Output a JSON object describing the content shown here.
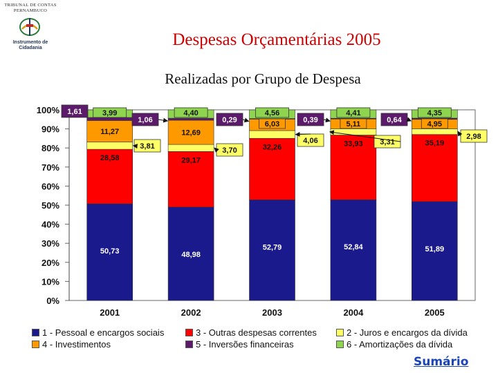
{
  "header": {
    "logo_top_text": "TRIBUNAL DE CONTAS PERNAMBUCO",
    "logo_sub_text": "Instrumento de Cidadania"
  },
  "title": "Despesas Orçamentárias 2005",
  "subtitle": "Realizadas por Grupo de Despesa",
  "chart_data": {
    "type": "bar",
    "stacked": true,
    "percent_stacked": true,
    "categories": [
      "2001",
      "2002",
      "2003",
      "2004",
      "2005"
    ],
    "ylim": [
      0,
      100
    ],
    "yticks": [
      "0%",
      "10%",
      "20%",
      "30%",
      "40%",
      "50%",
      "60%",
      "70%",
      "80%",
      "90%",
      "100%"
    ],
    "grid": false,
    "legend_position": "bottom",
    "series": [
      {
        "name": "1 - Pessoal e encargos sociais",
        "color": "#1a1a8c",
        "values": [
          50.73,
          48.98,
          52.79,
          52.84,
          51.89
        ],
        "labels": [
          "50,73",
          "48,98",
          "52,79",
          "52,84",
          "51,89"
        ]
      },
      {
        "name": "3 - Outras despesas correntes",
        "color": "#ff0000",
        "values": [
          28.58,
          29.17,
          32.26,
          33.93,
          35.19
        ],
        "labels": [
          "28,58",
          "29,17",
          "32,26",
          "33,93",
          "35,19"
        ]
      },
      {
        "name": "2 - Juros e encargos da dívida",
        "color": "#ffff66",
        "values": [
          3.81,
          3.7,
          4.06,
          3.31,
          2.98
        ],
        "labels": [
          "3,81",
          "3,70",
          "4,06",
          "3,31",
          "2,98"
        ]
      },
      {
        "name": "4 - Investimentos",
        "color": "#ff9900",
        "values": [
          11.27,
          12.69,
          6.03,
          5.11,
          4.95
        ],
        "labels": [
          "11,27",
          "12,69",
          "6,03",
          "5,11",
          "4,95"
        ]
      },
      {
        "name": "5 - Inversões financeiras",
        "color": "#5c1a6b",
        "values": [
          1.61,
          1.06,
          0.29,
          0.39,
          0.64
        ],
        "labels": [
          "1,61",
          "1,06",
          "0,29",
          "0,39",
          "0,64"
        ]
      },
      {
        "name": "6 - Amortizações da dívida",
        "color": "#8fd44f",
        "values": [
          3.99,
          4.4,
          4.56,
          4.41,
          4.35
        ],
        "labels": [
          "3,99",
          "4,40",
          "4,56",
          "4,41",
          "4,35"
        ]
      }
    ]
  },
  "legend": [
    {
      "label": "1 - Pessoal e encargos sociais",
      "color": "#1a1a8c"
    },
    {
      "label": "3 - Outras despesas correntes",
      "color": "#ff0000"
    },
    {
      "label": "2 - Juros e encargos da dívida",
      "color": "#ffff66"
    },
    {
      "label": "4 - Investimentos",
      "color": "#ff9900"
    },
    {
      "label": "5 - Inversões financeiras",
      "color": "#5c1a6b"
    },
    {
      "label": "6 - Amortizações da dívida",
      "color": "#8fd44f"
    }
  ],
  "footer": {
    "sumario_label": "Sumário"
  }
}
